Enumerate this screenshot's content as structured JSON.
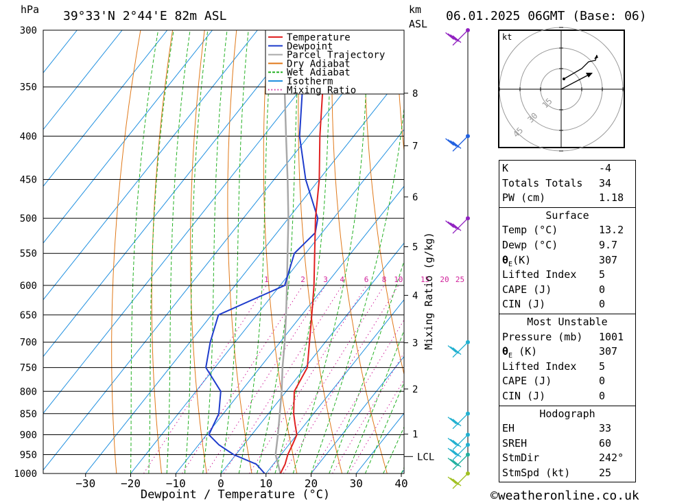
{
  "header": {
    "pressure_unit": "hPa",
    "location": "39°33'N 2°44'E 82m ASL",
    "height_unit_1": "km",
    "height_unit_2": "ASL",
    "datetime": "06.01.2025 06GMT (Base: 06)"
  },
  "legend": [
    "Temperature",
    "Dewpoint",
    "Parcel Trajectory",
    "Dry Adiabat",
    "Wet Adiabat",
    "Isotherm",
    "Mixing Ratio"
  ],
  "colors": {
    "temperature": "#e02020",
    "dewpoint": "#1e3ccc",
    "parcel": "#a8a8a8",
    "dry_adiabat": "#e07818",
    "wet_adiabat": "#22b022",
    "isotherm": "#2090e0",
    "mixing_ratio": "#d0209a"
  },
  "chart_data": {
    "type": "line",
    "xlabel": "Dewpoint / Temperature (°C)",
    "ylabel": "hPa",
    "mixing_ratio_label": "Mixing Ratio (g/kg)",
    "pressure_levels": [
      300,
      350,
      400,
      450,
      500,
      550,
      600,
      650,
      700,
      750,
      800,
      850,
      900,
      950,
      1000
    ],
    "x_ticks": [
      -30,
      -20,
      -10,
      0,
      10,
      20,
      30,
      40
    ],
    "xlim": [
      -40,
      40
    ],
    "height_km_ticks": [
      1,
      2,
      3,
      4,
      5,
      6,
      7,
      8
    ],
    "lcl_label": "LCL",
    "mixing_ratio_values": [
      "1",
      "2",
      "3",
      "4",
      "6",
      "8",
      "10",
      "15",
      "20",
      "25"
    ],
    "temperature_profile": [
      {
        "p": 1000,
        "t": 13.2
      },
      {
        "p": 975,
        "t": 12.6
      },
      {
        "p": 950,
        "t": 11.5
      },
      {
        "p": 925,
        "t": 10.8
      },
      {
        "p": 900,
        "t": 10.0
      },
      {
        "p": 875,
        "t": 7.8
      },
      {
        "p": 850,
        "t": 5.6
      },
      {
        "p": 800,
        "t": 1.8
      },
      {
        "p": 750,
        "t": 0.5
      },
      {
        "p": 700,
        "t": -3.5
      },
      {
        "p": 650,
        "t": -7.8
      },
      {
        "p": 600,
        "t": -12.5
      },
      {
        "p": 550,
        "t": -18.0
      },
      {
        "p": 500,
        "t": -24.0
      },
      {
        "p": 450,
        "t": -30.0
      },
      {
        "p": 400,
        "t": -37.5
      },
      {
        "p": 350,
        "t": -45.5
      }
    ],
    "dewpoint_profile": [
      {
        "p": 1000,
        "t": 9.7
      },
      {
        "p": 975,
        "t": 6.2
      },
      {
        "p": 950,
        "t": -0.5
      },
      {
        "p": 925,
        "t": -5.5
      },
      {
        "p": 900,
        "t": -9.5
      },
      {
        "p": 850,
        "t": -11.0
      },
      {
        "p": 800,
        "t": -14.5
      },
      {
        "p": 750,
        "t": -22.0
      },
      {
        "p": 700,
        "t": -25.5
      },
      {
        "p": 650,
        "t": -28.5
      },
      {
        "p": 600,
        "t": -19.0
      },
      {
        "p": 550,
        "t": -22.5
      },
      {
        "p": 520,
        "t": -21.5
      },
      {
        "p": 500,
        "t": -23.5
      },
      {
        "p": 450,
        "t": -33.0
      },
      {
        "p": 400,
        "t": -42.0
      },
      {
        "p": 350,
        "t": -50.0
      },
      {
        "p": 300,
        "t": -58.0
      }
    ],
    "parcel_profile": [
      {
        "p": 1000,
        "t": 13.2
      },
      {
        "p": 950,
        "t": 8.8
      },
      {
        "p": 900,
        "t": 5.8
      },
      {
        "p": 850,
        "t": 2.5
      },
      {
        "p": 800,
        "t": -1.0
      },
      {
        "p": 750,
        "t": -5.0
      },
      {
        "p": 700,
        "t": -9.0
      },
      {
        "p": 650,
        "t": -13.5
      },
      {
        "p": 600,
        "t": -18.5
      },
      {
        "p": 550,
        "t": -24.0
      },
      {
        "p": 500,
        "t": -30.0
      },
      {
        "p": 450,
        "t": -37.0
      },
      {
        "p": 400,
        "t": -45.0
      },
      {
        "p": 350,
        "t": -54.0
      },
      {
        "p": 320,
        "t": -60.0
      }
    ],
    "winds": [
      {
        "p": 300,
        "color": "#9020c0"
      },
      {
        "p": 400,
        "color": "#2060e0"
      },
      {
        "p": 500,
        "color": "#9020c0"
      },
      {
        "p": 700,
        "color": "#20b0d0"
      },
      {
        "p": 850,
        "color": "#20b0d0"
      },
      {
        "p": 900,
        "color": "#20b0d0"
      },
      {
        "p": 925,
        "color": "#20b0d0"
      },
      {
        "p": 950,
        "color": "#20b0a0"
      },
      {
        "p": 1000,
        "color": "#a0c020"
      }
    ]
  },
  "hodograph": {
    "unit": "kt",
    "ring_labels": [
      "15",
      "30",
      "45"
    ]
  },
  "indices": {
    "k_label": "K",
    "k_value": "-4",
    "tt_label": "Totals Totals",
    "tt_value": "34",
    "pw_label": "PW (cm)",
    "pw_value": "1.18"
  },
  "surface": {
    "heading": "Surface",
    "temp_label": "Temp (°C)",
    "temp_value": "13.2",
    "dewp_label": "Dewp (°C)",
    "dewp_value": "9.7",
    "theta_label": "(K)",
    "theta_value": "307",
    "li_label": "Lifted Index",
    "li_value": "5",
    "cape_label": "CAPE (J)",
    "cape_value": "0",
    "cin_label": "CIN (J)",
    "cin_value": "0"
  },
  "most_unstable": {
    "heading": "Most Unstable",
    "pressure_label": "Pressure (mb)",
    "pressure_value": "1001",
    "theta_label": "(K)",
    "theta_value": "307",
    "li_label": "Lifted Index",
    "li_value": "5",
    "cape_label": "CAPE (J)",
    "cape_value": "0",
    "cin_label": "CIN (J)",
    "cin_value": "0"
  },
  "hodo_stats": {
    "heading": "Hodograph",
    "eh_label": "EH",
    "eh_value": "33",
    "sreh_label": "SREH",
    "sreh_value": "60",
    "stmdir_label": "StmDir",
    "stmdir_value": "242°",
    "stmspd_label": "StmSpd (kt)",
    "stmspd_value": "25"
  },
  "footer": {
    "copyright": "©weatheronline.co.uk"
  }
}
